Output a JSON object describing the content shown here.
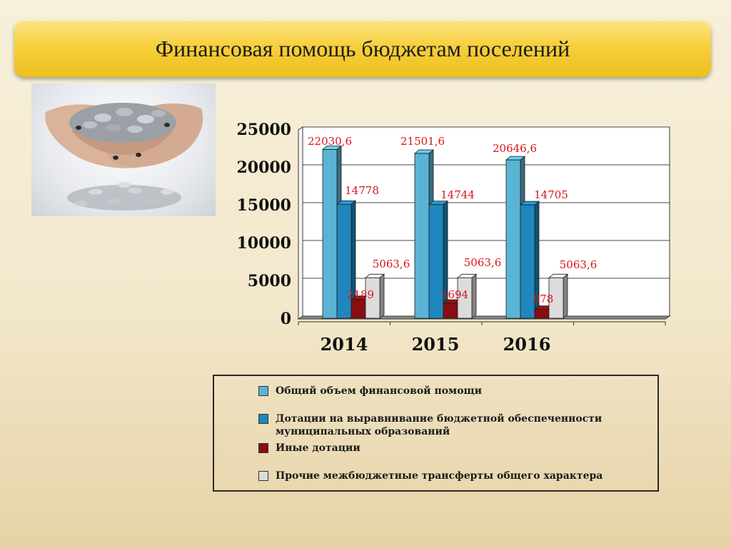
{
  "slide": {
    "title": "Финансовая помощь бюджетам поселений"
  },
  "photo": {
    "description_icon": "coins-in-hands-photo"
  },
  "chart_data": {
    "type": "bar",
    "title": "",
    "xlabel": "",
    "ylabel": "",
    "ylim": [
      0,
      25000
    ],
    "yticks": [
      "0",
      "5000",
      "10000",
      "15000",
      "20000",
      "25000"
    ],
    "categories": [
      "2014",
      "2015",
      "2016"
    ],
    "grid": true,
    "legend_position": "bottom",
    "series": [
      {
        "name": "Общий объем финансовой помощи",
        "color": "#5bb4d4",
        "values": [
          22030.6,
          21501.6,
          20646.6
        ],
        "labels": [
          "22030,6",
          "21501,6",
          "20646,6"
        ]
      },
      {
        "name": "Дотации на выравнивание бюджетной обеспеченности муниципальных образований",
        "color": "#1f87be",
        "values": [
          14778,
          14744,
          14705
        ],
        "labels": [
          "14778",
          "14744",
          "14705"
        ]
      },
      {
        "name": "Иные дотации",
        "color": "#8a0d12",
        "values": [
          2189,
          1694,
          878
        ],
        "labels": [
          "2189",
          "1694",
          "878"
        ]
      },
      {
        "name": "Прочие межбюджетные трансферты общего характера",
        "color": "#dcdcdc",
        "values": [
          5063.6,
          5063.6,
          5063.6
        ],
        "labels": [
          "5063,6",
          "5063,6",
          "5063,6"
        ]
      }
    ],
    "label_color": "#d8141a"
  }
}
